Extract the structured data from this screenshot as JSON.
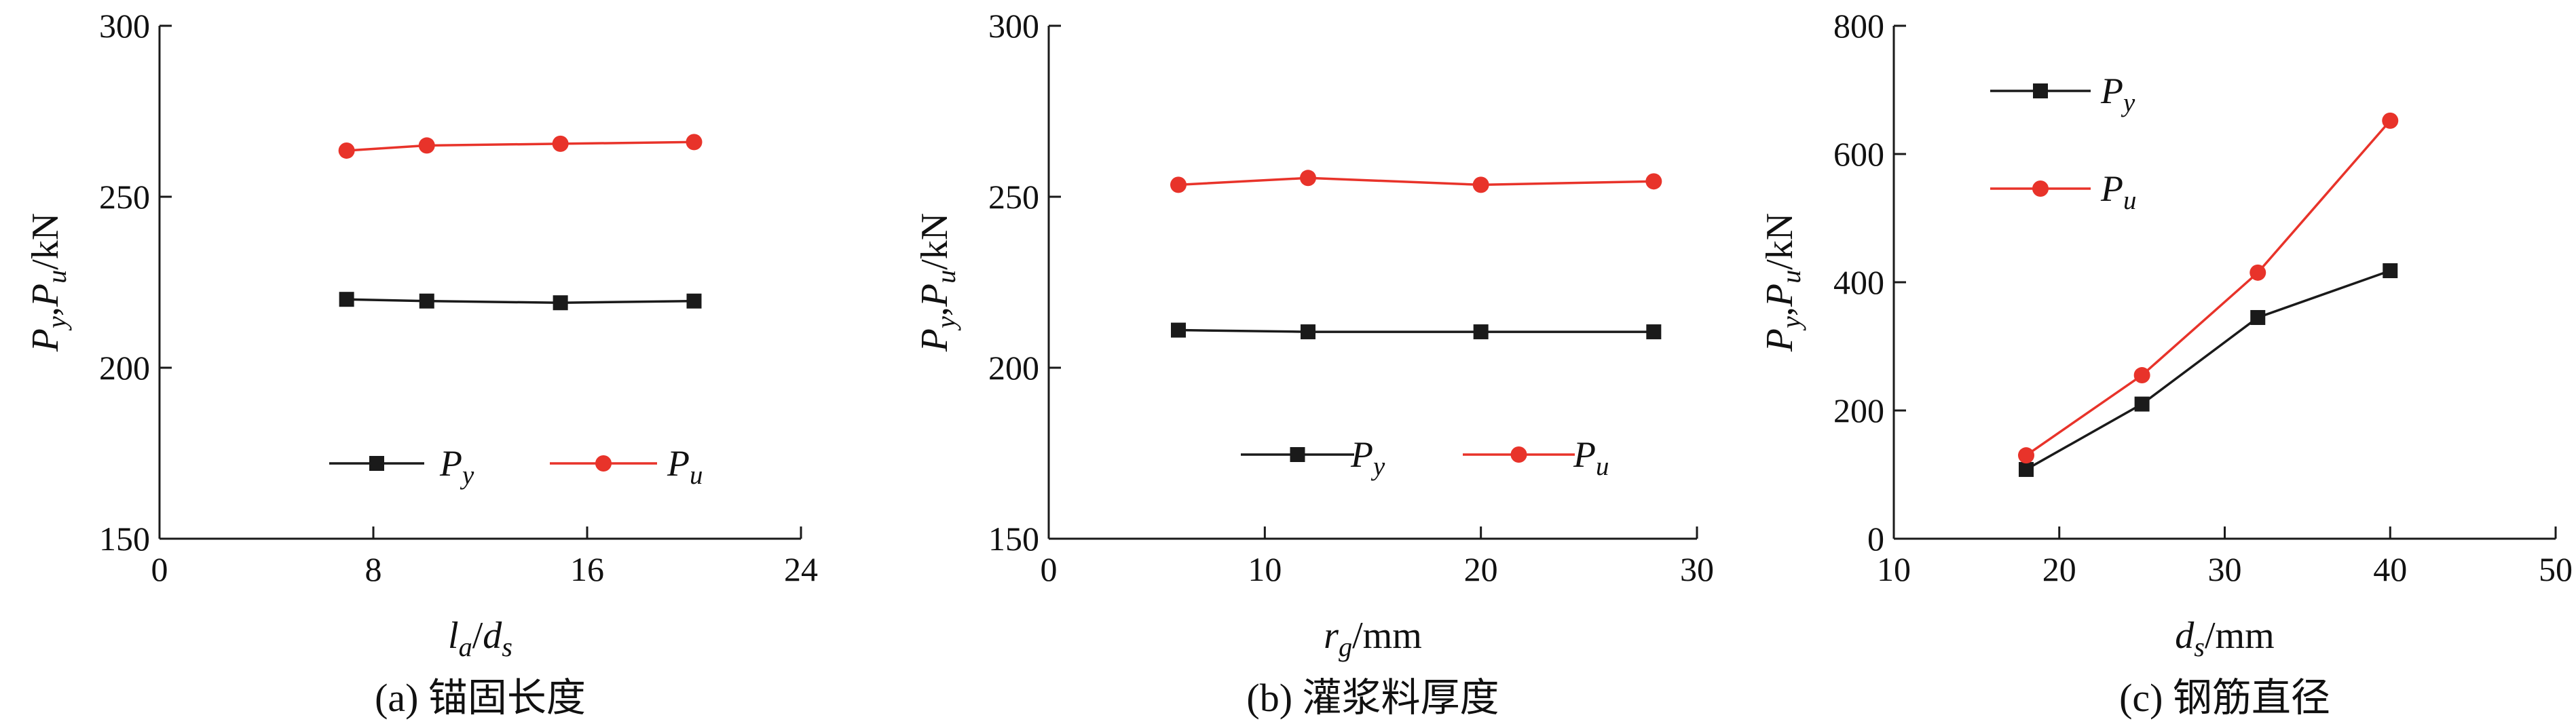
{
  "charts": [
    {
      "caption": "(a) 锚固长度",
      "xlabel_parts": [
        [
          "l",
          "i"
        ],
        [
          "a",
          "sub"
        ],
        [
          "/",
          "n"
        ],
        [
          "d",
          "i"
        ],
        [
          "s",
          "sub"
        ]
      ],
      "ylabel_parts": [
        [
          "P",
          "i"
        ],
        [
          "y",
          "sub"
        ],
        [
          ",",
          "n"
        ],
        [
          "P",
          "i"
        ],
        [
          "u",
          "sub"
        ],
        [
          "/kN",
          "n"
        ]
      ],
      "legend_position": "bottom",
      "legend_label_parts": [
        [
          [
            "P",
            "i"
          ],
          [
            "y",
            "sub"
          ]
        ],
        [
          [
            "P",
            "i"
          ],
          [
            "u",
            "sub"
          ]
        ]
      ]
    },
    {
      "caption": "(b) 灌浆料厚度",
      "xlabel_parts": [
        [
          "r",
          "i"
        ],
        [
          "g",
          "sub"
        ],
        [
          "/mm",
          "n"
        ]
      ],
      "ylabel_parts": [
        [
          "P",
          "i"
        ],
        [
          "y",
          "sub"
        ],
        [
          ",",
          "n"
        ],
        [
          "P",
          "i"
        ],
        [
          "u",
          "sub"
        ],
        [
          "/kN",
          "n"
        ]
      ],
      "legend_position": "bottom",
      "legend_label_parts": [
        [
          [
            "P",
            "i"
          ],
          [
            "y",
            "sub"
          ]
        ],
        [
          [
            "P",
            "i"
          ],
          [
            "u",
            "sub"
          ]
        ]
      ]
    },
    {
      "caption": "(c) 钢筋直径",
      "xlabel_parts": [
        [
          "d",
          "i"
        ],
        [
          "s",
          "sub"
        ],
        [
          "/mm",
          "n"
        ]
      ],
      "ylabel_parts": [
        [
          "P",
          "i"
        ],
        [
          "y",
          "sub"
        ],
        [
          ",",
          "n"
        ],
        [
          "P",
          "i"
        ],
        [
          "u",
          "sub"
        ],
        [
          "/kN",
          "n"
        ]
      ],
      "legend_position": "top-left",
      "legend_label_parts": [
        [
          [
            "P",
            "i"
          ],
          [
            "y",
            "sub"
          ]
        ],
        [
          [
            "P",
            "i"
          ],
          [
            "u",
            "sub"
          ]
        ]
      ]
    }
  ],
  "chart_data": [
    {
      "type": "line",
      "x": [
        7,
        10,
        15,
        20
      ],
      "series": [
        {
          "name": "Py",
          "marker": "square",
          "color": "#1a1a1a",
          "values": [
            220,
            219.5,
            219,
            219.5
          ]
        },
        {
          "name": "Pu",
          "marker": "circle",
          "color": "#e8332a",
          "values": [
            263.5,
            265,
            265.5,
            266
          ]
        }
      ],
      "xlim": [
        0,
        24
      ],
      "xticks": [
        0,
        8,
        16,
        24
      ],
      "ylim": [
        150,
        300
      ],
      "yticks": [
        150,
        200,
        250,
        300
      ],
      "grid": false
    },
    {
      "type": "line",
      "x": [
        6,
        12,
        20,
        28
      ],
      "series": [
        {
          "name": "Py",
          "marker": "square",
          "color": "#1a1a1a",
          "values": [
            211,
            210.5,
            210.5,
            210.5
          ]
        },
        {
          "name": "Pu",
          "marker": "circle",
          "color": "#e8332a",
          "values": [
            253.5,
            255.5,
            253.5,
            254.5
          ]
        }
      ],
      "xlim": [
        0,
        30
      ],
      "xticks": [
        0,
        10,
        20,
        30
      ],
      "ylim": [
        150,
        300
      ],
      "yticks": [
        150,
        200,
        250,
        300
      ],
      "grid": false
    },
    {
      "type": "line",
      "x": [
        18,
        25,
        32,
        40
      ],
      "series": [
        {
          "name": "Py",
          "marker": "square",
          "color": "#1a1a1a",
          "values": [
            108,
            210,
            345,
            418
          ]
        },
        {
          "name": "Pu",
          "marker": "circle",
          "color": "#e8332a",
          "values": [
            130,
            255,
            415,
            652
          ]
        }
      ],
      "xlim": [
        10,
        50
      ],
      "xticks": [
        10,
        20,
        30,
        40,
        50
      ],
      "ylim": [
        0,
        800
      ],
      "yticks": [
        0,
        200,
        400,
        600,
        800
      ],
      "grid": false
    }
  ]
}
